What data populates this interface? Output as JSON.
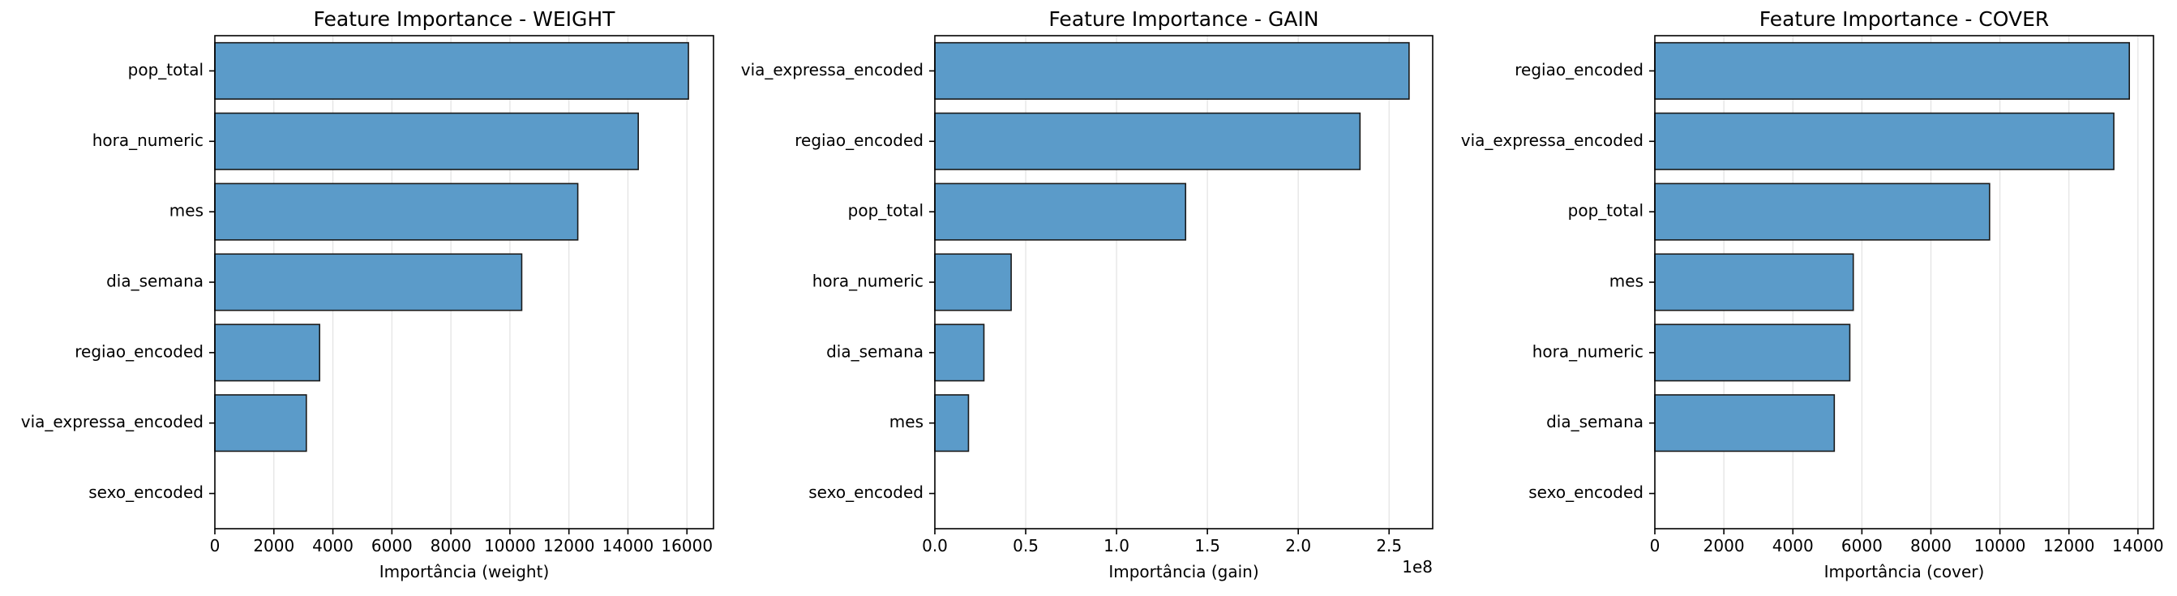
{
  "chart_data": [
    {
      "type": "bar",
      "orientation": "horizontal",
      "title": "Feature Importance - WEIGHT",
      "xlabel": "Importância (weight)",
      "offset_text": "",
      "categories": [
        "pop_total",
        "hora_numeric",
        "mes",
        "dia_semana",
        "regiao_encoded",
        "via_expressa_encoded",
        "sexo_encoded"
      ],
      "values": [
        16050,
        14350,
        12300,
        10400,
        3550,
        3100,
        0
      ],
      "xlim": [
        0,
        16900
      ],
      "xticks": [
        0,
        2000,
        4000,
        6000,
        8000,
        10000,
        12000,
        14000,
        16000
      ],
      "xtick_labels": [
        "0",
        "2000",
        "4000",
        "6000",
        "8000",
        "10000",
        "12000",
        "14000",
        "16000"
      ],
      "grid": "vertical"
    },
    {
      "type": "bar",
      "orientation": "horizontal",
      "title": "Feature Importance - GAIN",
      "xlabel": "Importância (gain)",
      "offset_text": "1e8",
      "categories": [
        "via_expressa_encoded",
        "regiao_encoded",
        "pop_total",
        "hora_numeric",
        "dia_semana",
        "mes",
        "sexo_encoded"
      ],
      "values": [
        261000000,
        234000000,
        138000000,
        42000000,
        27000000,
        18500000,
        0
      ],
      "xlim": [
        0,
        274000000
      ],
      "xticks": [
        0,
        50000000,
        100000000,
        150000000,
        200000000,
        250000000
      ],
      "xtick_labels": [
        "0.0",
        "0.5",
        "1.0",
        "1.5",
        "2.0",
        "2.5"
      ],
      "grid": "vertical"
    },
    {
      "type": "bar",
      "orientation": "horizontal",
      "title": "Feature Importance - COVER",
      "xlabel": "Importância (cover)",
      "offset_text": "",
      "categories": [
        "regiao_encoded",
        "via_expressa_encoded",
        "pop_total",
        "mes",
        "hora_numeric",
        "dia_semana",
        "sexo_encoded"
      ],
      "values": [
        13750,
        13300,
        9700,
        5750,
        5650,
        5200,
        0
      ],
      "xlim": [
        0,
        14450
      ],
      "xticks": [
        0,
        2000,
        4000,
        6000,
        8000,
        10000,
        12000,
        14000
      ],
      "xtick_labels": [
        "0",
        "2000",
        "4000",
        "6000",
        "8000",
        "10000",
        "12000",
        "14000"
      ],
      "grid": "vertical"
    }
  ],
  "colors": {
    "bar_fill": "#5b9bc9",
    "bar_edge": "#1a1a1a",
    "grid": "#e2e2e2",
    "axis": "#000000"
  }
}
